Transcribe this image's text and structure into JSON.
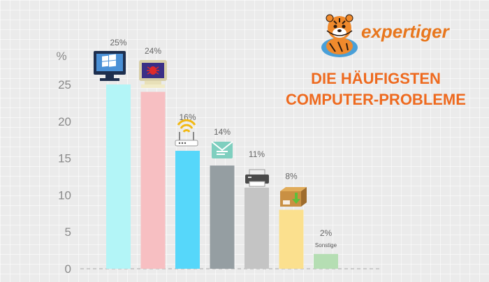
{
  "brand": {
    "name": "expertiger",
    "color": "#e8771e"
  },
  "chart_data": {
    "type": "bar",
    "title_lines": [
      "DIE HÄUFIGSTEN",
      "COMPUTER-PROBLEME"
    ],
    "ylabel": "%",
    "ylim": [
      0,
      25
    ],
    "yticks": [
      "0",
      "5",
      "10",
      "15",
      "20",
      "25"
    ],
    "grid": false,
    "values": [
      25,
      24,
      16,
      14,
      11,
      8,
      2
    ],
    "value_labels": [
      "25%",
      "24%",
      "16%",
      "14%",
      "11%",
      "8%",
      "2%"
    ],
    "bar_notes": [
      "",
      "",
      "",
      "",
      "",
      "",
      "Sonstige"
    ],
    "colors": [
      "#b3f5f7",
      "#f7bfc2",
      "#56d7fa",
      "#959ea2",
      "#c4c4c4",
      "#fbe08e",
      "#b5deb3"
    ],
    "icons": [
      "windows-monitor-icon",
      "virus-monitor-icon",
      "wifi-router-icon",
      "email-icon",
      "printer-icon",
      "software-box-icon",
      ""
    ]
  }
}
